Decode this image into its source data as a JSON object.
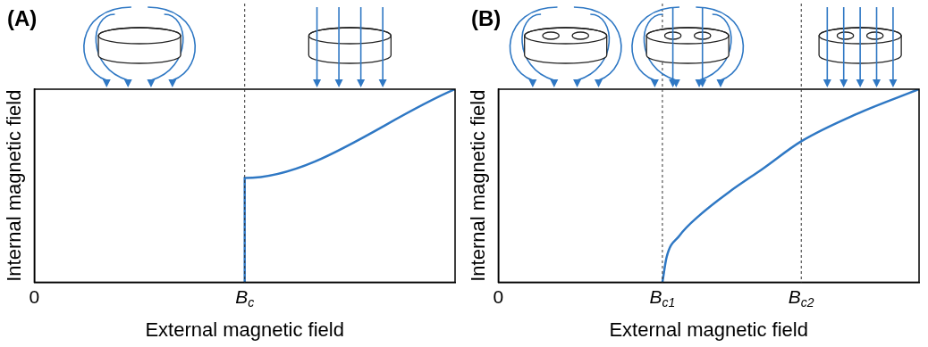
{
  "chart_data": [
    {
      "type": "line",
      "panel": "(A)",
      "x_label": "External magnetic field",
      "y_label": "Internal magnetic field",
      "xlim": [
        0,
        10
      ],
      "ylim": [
        0,
        10
      ],
      "xticks": [
        0,
        {
          "value": 5,
          "label": "Bc"
        }
      ],
      "yticks": [],
      "tick_labels": "x",
      "grid": false,
      "x": [
        5,
        5,
        10
      ],
      "series": [
        {
          "color": "#2f78c4",
          "values": [
            0,
            5.4,
            10
          ]
        }
      ]
    },
    {
      "type": "line",
      "panel": "(B)",
      "x_label": "External magnetic field",
      "y_label": "Internal magnetic field",
      "xlim": [
        0,
        10
      ],
      "ylim": [
        0,
        10
      ],
      "xticks": [
        0,
        {
          "value": 3.9,
          "label": "Bc1"
        },
        {
          "value": 7.2,
          "label": "Bc2"
        }
      ],
      "yticks": [],
      "tick_labels": "x",
      "grid": false,
      "x": [
        3.9,
        4.0,
        4.3,
        4.8,
        5.5,
        6.3,
        7.2,
        8.5,
        10
      ],
      "series": [
        {
          "color": "#2f78c4",
          "values": [
            0,
            1.3,
            2.4,
            3.5,
            4.7,
            5.9,
            7.3,
            8.7,
            10
          ]
        }
      ]
    }
  ]
}
